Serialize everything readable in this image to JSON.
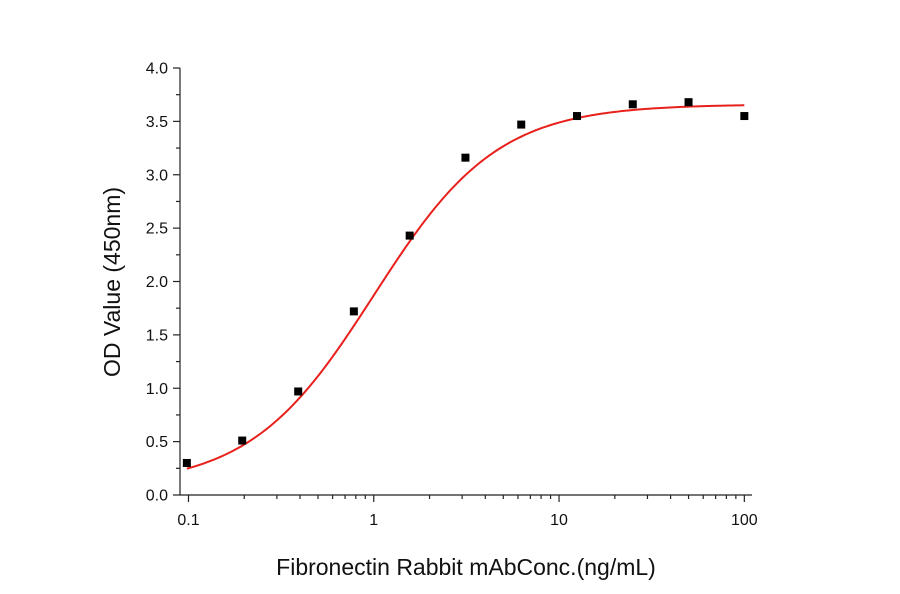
{
  "chart_data": {
    "type": "scatter",
    "xlabel": "Fibronectin Rabbit mAbConc.(ng/mL)",
    "ylabel": "OD Value (450nm)",
    "x_scale": "log",
    "xlim": [
      0.09,
      110
    ],
    "ylim": [
      0,
      4.0
    ],
    "x_ticks": [
      0.1,
      1,
      10,
      100
    ],
    "x_tick_labels": [
      "0.1",
      "1",
      "10",
      "100"
    ],
    "y_ticks": [
      0,
      0.5,
      1.0,
      1.5,
      2.0,
      2.5,
      3.0,
      3.5,
      4.0
    ],
    "y_tick_labels": [
      "0.0",
      "0.5",
      "1.0",
      "1.5",
      "2.0",
      "2.5",
      "3.0",
      "3.5",
      "4.0"
    ],
    "grid": false,
    "series": [
      {
        "kind": "points",
        "marker": "square",
        "color": "#000000",
        "x": [
          0.098,
          0.195,
          0.391,
          0.781,
          1.5625,
          3.125,
          6.25,
          12.5,
          25,
          50,
          100
        ],
        "y": [
          0.3,
          0.51,
          0.97,
          1.72,
          2.43,
          3.16,
          3.47,
          3.55,
          3.66,
          3.68,
          3.55
        ]
      },
      {
        "kind": "fit-curve",
        "color": "#e8201c",
        "model": "4PL",
        "bottom": 0.08,
        "top": 3.66,
        "ec50": 1.0,
        "hill": 1.3,
        "x_range": [
          0.098,
          100
        ]
      }
    ]
  }
}
